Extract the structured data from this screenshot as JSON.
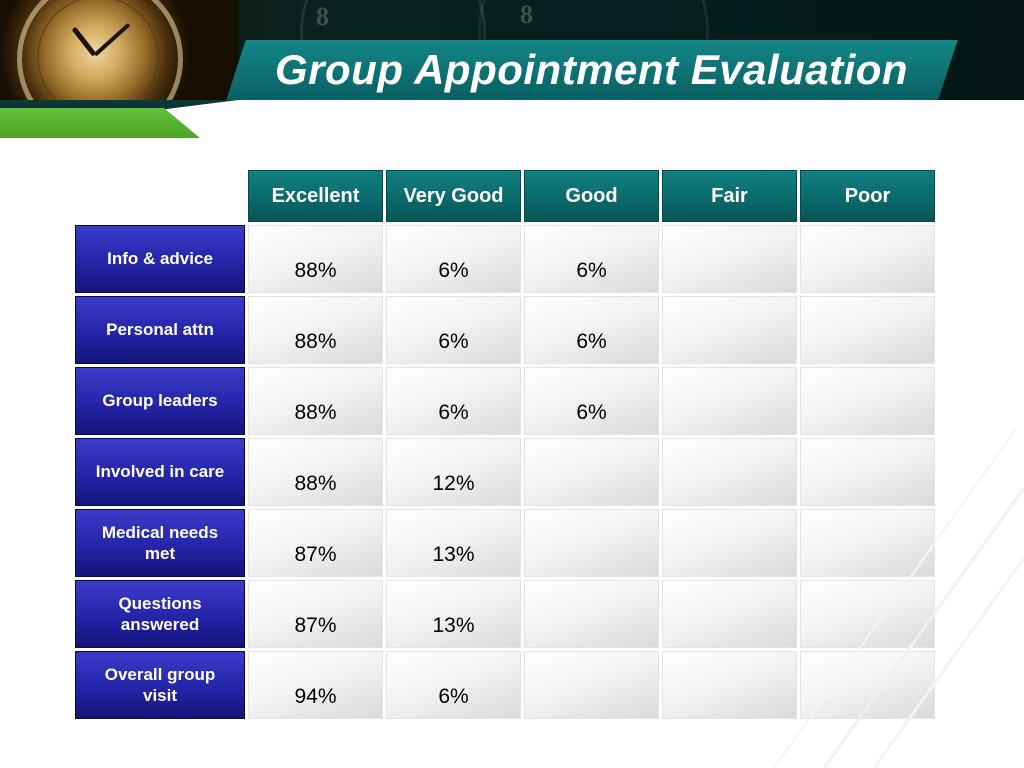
{
  "title": "Group Appointment Evaluation",
  "decor": {
    "clock_digits": [
      "8",
      "8"
    ]
  },
  "colors": {
    "header_teal": "#0e7173",
    "row_blue": "#2424a8",
    "accent_green": "#55b02c",
    "banner_dark": "#04201e"
  },
  "table": {
    "columns": [
      "Excellent",
      "Very Good",
      "Good",
      "Fair",
      "Poor"
    ],
    "rows": [
      {
        "label": "Info & advice",
        "values": [
          "88%",
          "6%",
          "6%",
          "",
          ""
        ]
      },
      {
        "label": "Personal attn",
        "values": [
          "88%",
          "6%",
          "6%",
          "",
          ""
        ]
      },
      {
        "label": "Group leaders",
        "values": [
          "88%",
          "6%",
          "6%",
          "",
          ""
        ]
      },
      {
        "label": "Involved in care",
        "values": [
          "88%",
          "12%",
          "",
          "",
          ""
        ]
      },
      {
        "label": "Medical needs met",
        "values": [
          "87%",
          "13%",
          "",
          "",
          ""
        ]
      },
      {
        "label": "Questions answered",
        "values": [
          "87%",
          "13%",
          "",
          "",
          ""
        ]
      },
      {
        "label": "Overall group visit",
        "values": [
          "94%",
          "6%",
          "",
          "",
          ""
        ]
      }
    ]
  }
}
